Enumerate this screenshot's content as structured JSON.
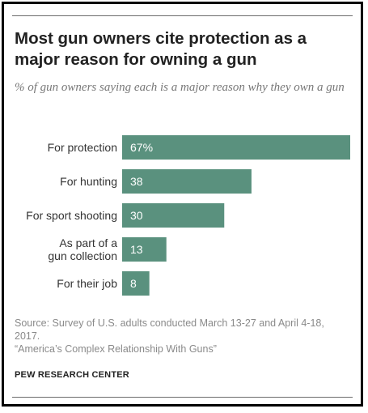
{
  "title": "Most gun owners cite protection as a major reason for owning a gun",
  "subtitle": "% of gun owners saying each is a major reason why they own a gun",
  "source_line1": "Source: Survey of U.S. adults conducted March 13-27 and April 4-18, 2017.",
  "source_line2": "“America’s Complex Relationship With Guns”",
  "brand": "PEW RESEARCH CENTER",
  "colors": {
    "bar": "#5a917e",
    "bar_label": "#ffffff",
    "text": "#333333"
  },
  "chart_data": {
    "type": "bar",
    "orientation": "horizontal",
    "categories": [
      "For protection",
      "For hunting",
      "For sport shooting",
      "As part of a gun collection",
      "For their job"
    ],
    "category_lines": [
      [
        "For protection"
      ],
      [
        "For hunting"
      ],
      [
        "For sport shooting"
      ],
      [
        "As part of a",
        "gun collection"
      ],
      [
        "For their job"
      ]
    ],
    "values": [
      67,
      38,
      30,
      13,
      8
    ],
    "value_labels": [
      "67%",
      "38",
      "30",
      "13",
      "8"
    ],
    "xlim": [
      0,
      67
    ],
    "grid": false,
    "legend": "none"
  }
}
